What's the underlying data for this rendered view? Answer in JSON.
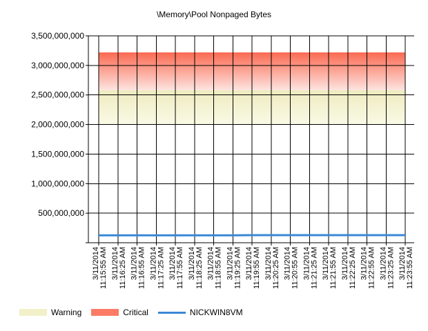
{
  "chart_data": {
    "type": "line",
    "title": "\\Memory\\Pool Nonpaged Bytes",
    "xlabel": "",
    "ylabel": "",
    "ylim": [
      0,
      3500000000
    ],
    "y_ticks": [
      500000000,
      1000000000,
      1500000000,
      2000000000,
      2500000000,
      3000000000,
      3500000000
    ],
    "y_tick_labels": [
      "500,000,000",
      "1,000,000,000",
      "1,500,000,000",
      "2,000,000,000",
      "2,500,000,000",
      "3,000,000,000",
      "3,500,000,000"
    ],
    "x": [
      "3/11/2014 11:15:55 AM",
      "3/11/2014 11:16:25 AM",
      "3/11/2014 11:16:55 AM",
      "3/11/2014 11:17:25 AM",
      "3/11/2014 11:17:55 AM",
      "3/11/2014 11:18:25 AM",
      "3/11/2014 11:18:55 AM",
      "3/11/2014 11:19:25 AM",
      "3/11/2014 11:19:55 AM",
      "3/11/2014 11:20:25 AM",
      "3/11/2014 11:20:55 AM",
      "3/11/2014 11:21:25 AM",
      "3/11/2014 11:21:55 AM",
      "3/11/2014 11:22:25 AM",
      "3/11/2014 11:22:55 AM",
      "3/11/2014 11:23:25 AM",
      "3/11/2014 11:23:55 AM"
    ],
    "bands": [
      {
        "name": "Warning",
        "from": 2000000000,
        "to": 2580000000,
        "color_top": "#eeebbf",
        "color_bottom": "#fafae6"
      },
      {
        "name": "Critical",
        "from": 2580000000,
        "to": 3220000000,
        "color_top": "#fa6a52",
        "color_bottom": "#fde4e0"
      }
    ],
    "series": [
      {
        "name": "NICKWIN8VM",
        "color": "#3a87d6",
        "values": [
          125000000,
          125000000,
          125000000,
          126000000,
          126000000,
          126000000,
          126000000,
          126000000,
          128000000,
          128000000,
          128000000,
          128000000,
          128000000,
          128000000,
          128000000,
          128000000,
          128000000
        ]
      }
    ],
    "grid": true,
    "legend_position": "bottom-left"
  },
  "legend": {
    "warning_label": "Warning",
    "critical_label": "Critical",
    "series_label": "NICKWIN8VM",
    "warning_color": "#f2f0c8",
    "critical_color": "#fb7b65",
    "series_color": "#3a87d6"
  }
}
